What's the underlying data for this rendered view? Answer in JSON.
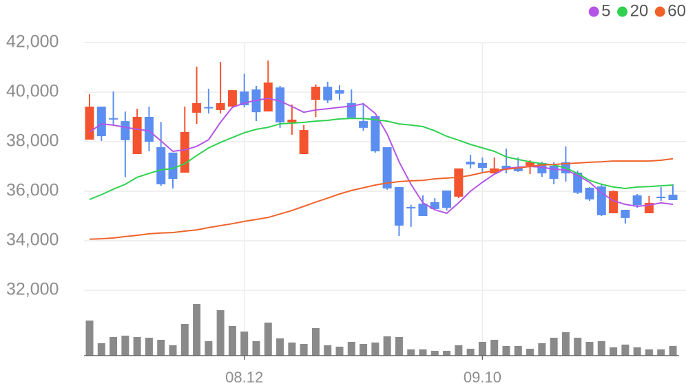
{
  "chart_data": {
    "type": "candlestick",
    "categories": [
      null,
      null,
      null,
      null,
      null,
      null,
      null,
      null,
      null,
      null,
      null,
      null,
      null,
      "08.12",
      null,
      null,
      null,
      null,
      null,
      null,
      null,
      null,
      null,
      null,
      null,
      null,
      null,
      null,
      null,
      null,
      null,
      null,
      null,
      "09.10",
      null,
      null,
      null,
      null,
      null,
      null,
      null,
      null,
      null,
      null,
      null,
      null,
      null,
      null,
      null,
      null
    ],
    "open": [
      38083,
      39417,
      38950,
      38830,
      37500,
      39000,
      37780,
      37560,
      36750,
      39170,
      39400,
      39280,
      39420,
      40030,
      40110,
      39220,
      40190,
      38780,
      37500,
      39690,
      40220,
      40080,
      39560,
      38830,
      39030,
      37780,
      36170,
      35360,
      35500,
      35560,
      36030,
      35780,
      37190,
      37140,
      36720,
      37030,
      36970,
      37030,
      37140,
      37030,
      37170,
      36750,
      36140,
      36190,
      35110,
      35250,
      35830,
      35110,
      35780,
      35860
    ],
    "high": [
      39917,
      39417,
      40028,
      39220,
      39330,
      39420,
      38800,
      37560,
      39420,
      41030,
      40140,
      41220,
      40080,
      40750,
      40250,
      41280,
      40250,
      39500,
      38670,
      40310,
      40420,
      40280,
      40110,
      39560,
      39030,
      37780,
      36170,
      35450,
      35830,
      35720,
      36030,
      36920,
      37470,
      37360,
      37360,
      37720,
      37360,
      37250,
      37190,
      37170,
      37810,
      36830,
      36170,
      36310,
      36030,
      35250,
      35890,
      35810,
      36170,
      36280
    ],
    "low": [
      38083,
      38028,
      38700,
      36560,
      37500,
      37610,
      36220,
      36110,
      36750,
      38720,
      39140,
      39140,
      39420,
      39390,
      38830,
      39220,
      38560,
      38280,
      37500,
      39000,
      39560,
      39670,
      38970,
      38440,
      37560,
      36060,
      34190,
      34560,
      35000,
      35280,
      35220,
      35720,
      36920,
      36720,
      36720,
      36720,
      36780,
      36690,
      36580,
      36280,
      36390,
      35890,
      35610,
      35000,
      35110,
      34690,
      35330,
      35110,
      35610,
      35640
    ],
    "close": [
      39417,
      38222,
      38900,
      38060,
      39000,
      38000,
      36280,
      36500,
      38390,
      39560,
      39360,
      39560,
      40080,
      39470,
      39190,
      40390,
      38780,
      38890,
      38470,
      40220,
      39670,
      39940,
      38970,
      38560,
      37610,
      36110,
      34610,
      35310,
      35000,
      35280,
      35330,
      36920,
      37080,
      36940,
      36920,
      36890,
      36810,
      37170,
      36720,
      36500,
      36720,
      35940,
      35670,
      35030,
      36000,
      34920,
      35440,
      35530,
      35720,
      35640
    ],
    "up_color": "#f4532f",
    "down_color": "#5b8ef0",
    "volume": [
      51,
      18,
      27,
      29,
      27,
      26,
      23,
      15,
      46,
      75,
      21,
      66,
      43,
      35,
      21,
      48,
      25,
      19,
      17,
      40,
      15,
      13,
      20,
      17,
      19,
      28,
      27,
      9,
      9,
      7,
      7,
      15,
      10,
      20,
      23,
      14,
      14,
      10,
      18,
      26,
      34,
      26,
      20,
      21,
      12,
      16,
      12,
      9,
      9,
      14
    ],
    "volume_color": "#8a8a8a",
    "series": [
      {
        "name": "5",
        "color": "#b455e8",
        "values": [
          38390,
          38720,
          38670,
          38580,
          38500,
          38440,
          38030,
          37610,
          37670,
          37810,
          38080,
          38780,
          39390,
          39560,
          39670,
          39750,
          39640,
          39420,
          39190,
          39280,
          39330,
          39390,
          39440,
          39530,
          39140,
          38310,
          37190,
          36280,
          35530,
          35250,
          35110,
          35530,
          36000,
          36360,
          36690,
          36920,
          36970,
          37000,
          36970,
          36890,
          36860,
          36640,
          36360,
          35940,
          35610,
          35470,
          35390,
          35440,
          35530,
          35470
        ]
      },
      {
        "name": "20",
        "color": "#2fd14f",
        "values": [
          35670,
          35860,
          36080,
          36280,
          36560,
          36720,
          36860,
          36920,
          37110,
          37440,
          37750,
          37970,
          38170,
          38360,
          38500,
          38580,
          38720,
          38750,
          38780,
          38830,
          38860,
          38920,
          38940,
          38940,
          38890,
          38830,
          38720,
          38670,
          38610,
          38440,
          38220,
          38060,
          37890,
          37750,
          37610,
          37390,
          37280,
          37190,
          37110,
          37060,
          36940,
          36720,
          36440,
          36280,
          36170,
          36110,
          36170,
          36190,
          36220,
          36250
        ]
      },
      {
        "name": "60",
        "color": "#f0622a",
        "values": [
          34060,
          34080,
          34110,
          34170,
          34220,
          34280,
          34310,
          34330,
          34390,
          34440,
          34530,
          34610,
          34690,
          34780,
          34860,
          34940,
          35080,
          35220,
          35390,
          35560,
          35720,
          35890,
          36030,
          36140,
          36250,
          36330,
          36390,
          36420,
          36440,
          36500,
          36530,
          36560,
          36640,
          36750,
          36830,
          36890,
          36940,
          37000,
          37060,
          37080,
          37110,
          37140,
          37170,
          37190,
          37220,
          37220,
          37220,
          37220,
          37250,
          37310
        ]
      }
    ],
    "ylim": [
      32000,
      42000
    ],
    "yticks": [
      {
        "value": 32000,
        "label": "32,000"
      },
      {
        "value": 34000,
        "label": "34,000"
      },
      {
        "value": 36000,
        "label": "36,000"
      },
      {
        "value": 38000,
        "label": "38,000"
      },
      {
        "value": 40000,
        "label": "40,000"
      },
      {
        "value": 42000,
        "label": "42,000"
      }
    ],
    "grid": true,
    "legend": "top-right"
  }
}
